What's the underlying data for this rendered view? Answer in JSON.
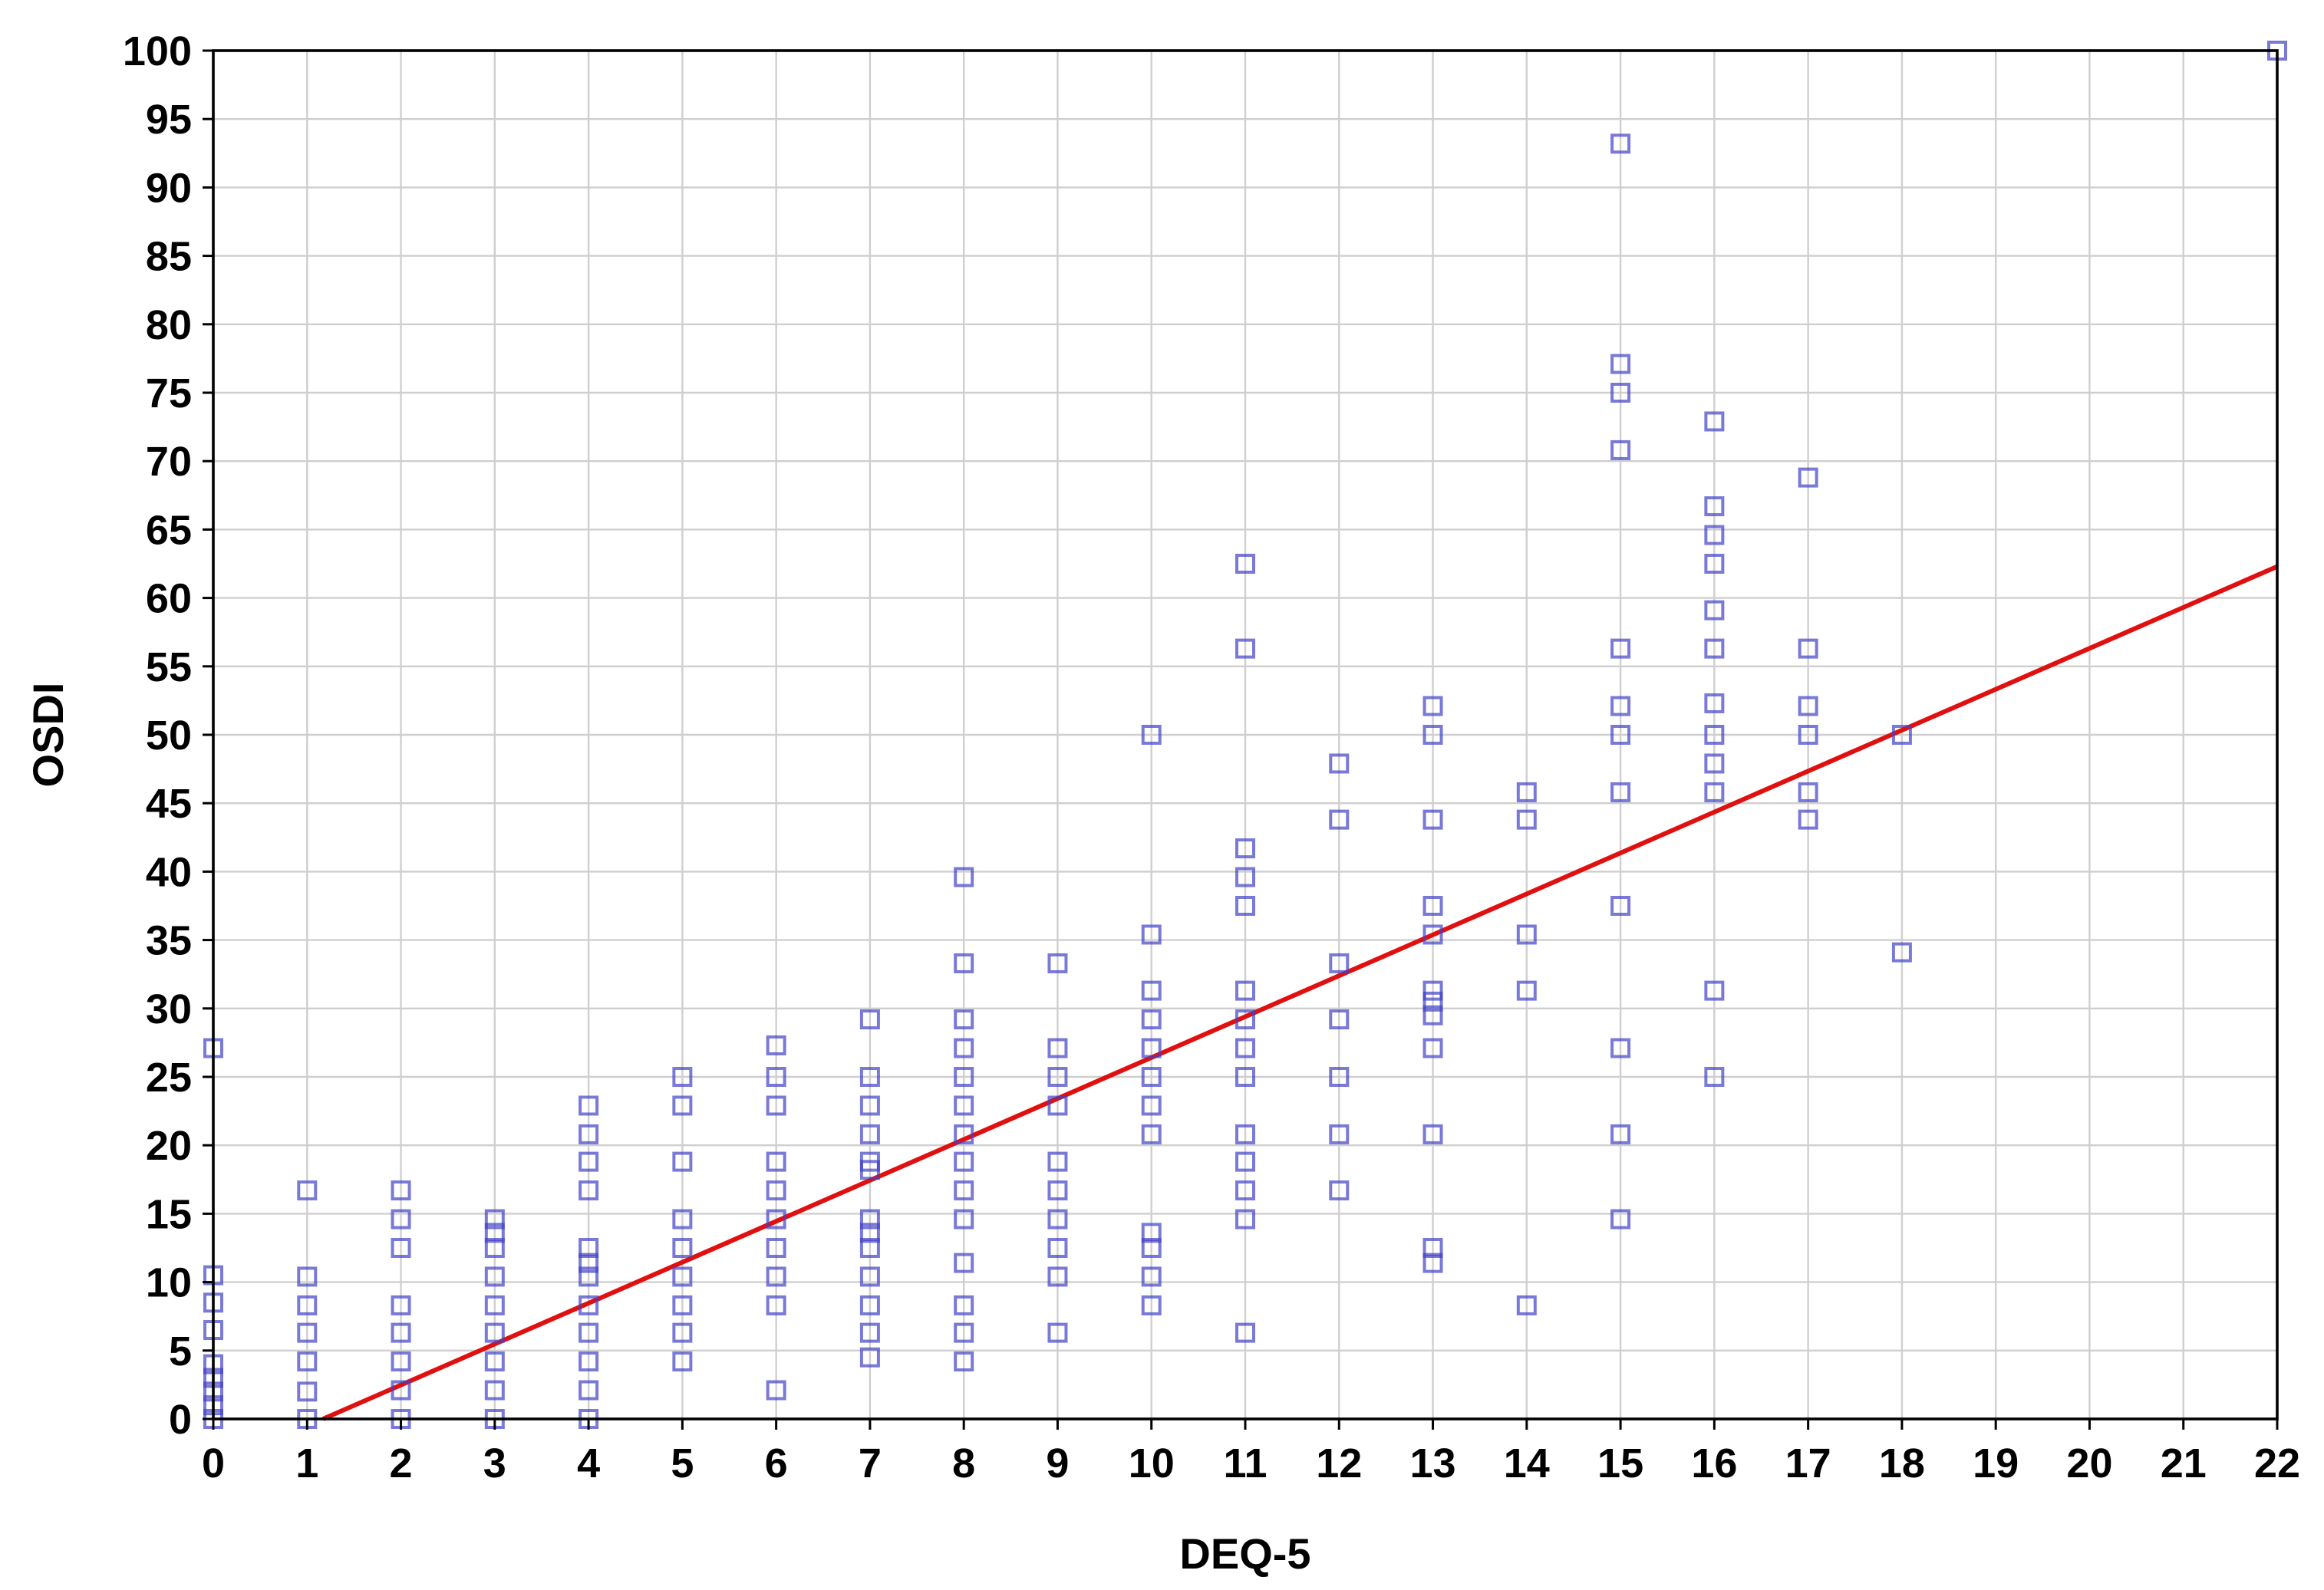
{
  "chart_data": {
    "type": "scatter",
    "title": "",
    "xlabel": "DEQ-5",
    "ylabel": "OSDI",
    "xlim": [
      0,
      22
    ],
    "ylim": [
      0,
      100
    ],
    "x_ticks": [
      "0",
      "1",
      "2",
      "3",
      "4",
      "5",
      "6",
      "7",
      "8",
      "9",
      "10",
      "11",
      "12",
      "13",
      "14",
      "15",
      "16",
      "17",
      "18",
      "19",
      "20",
      "21",
      "22"
    ],
    "y_ticks": [
      "0",
      "5",
      "10",
      "15",
      "20",
      "25",
      "30",
      "35",
      "40",
      "45",
      "50",
      "55",
      "60",
      "65",
      "70",
      "75",
      "80",
      "85",
      "90",
      "95",
      "100"
    ],
    "grid": true,
    "legend": "none",
    "colors": {
      "points": "#4040c8",
      "fit_line": "#e01010",
      "grid": "#cfcfcf"
    },
    "fit_line": {
      "x": [
        0,
        22
      ],
      "y": [
        -3.5,
        62.3
      ]
    },
    "points": [
      [
        0,
        0
      ],
      [
        0,
        1
      ],
      [
        0,
        2
      ],
      [
        0,
        3
      ],
      [
        0,
        4
      ],
      [
        0,
        6.5
      ],
      [
        0,
        8.5
      ],
      [
        0,
        10.5
      ],
      [
        0,
        27.1
      ],
      [
        1,
        0
      ],
      [
        1,
        2
      ],
      [
        1,
        4.2
      ],
      [
        1,
        6.3
      ],
      [
        1,
        8.3
      ],
      [
        1,
        10.4
      ],
      [
        1,
        16.7
      ],
      [
        2,
        0
      ],
      [
        2,
        2.1
      ],
      [
        2,
        4.2
      ],
      [
        2,
        6.3
      ],
      [
        2,
        8.3
      ],
      [
        2,
        12.5
      ],
      [
        2,
        14.6
      ],
      [
        2,
        16.7
      ],
      [
        3,
        0
      ],
      [
        3,
        2.1
      ],
      [
        3,
        4.2
      ],
      [
        3,
        6.3
      ],
      [
        3,
        8.3
      ],
      [
        3,
        10.4
      ],
      [
        3,
        12.5
      ],
      [
        3,
        13.6
      ],
      [
        3,
        14.6
      ],
      [
        4,
        0
      ],
      [
        4,
        2.1
      ],
      [
        4,
        4.2
      ],
      [
        4,
        6.3
      ],
      [
        4,
        8.3
      ],
      [
        4,
        10.4
      ],
      [
        4,
        11.4
      ],
      [
        4,
        12.5
      ],
      [
        4,
        16.7
      ],
      [
        4,
        18.8
      ],
      [
        4,
        20.8
      ],
      [
        4,
        22.9
      ],
      [
        5,
        4.2
      ],
      [
        5,
        6.3
      ],
      [
        5,
        8.3
      ],
      [
        5,
        10.4
      ],
      [
        5,
        12.5
      ],
      [
        5,
        14.6
      ],
      [
        5,
        18.8
      ],
      [
        5,
        22.9
      ],
      [
        5,
        25
      ],
      [
        6,
        2.1
      ],
      [
        6,
        8.3
      ],
      [
        6,
        10.4
      ],
      [
        6,
        12.5
      ],
      [
        6,
        14.6
      ],
      [
        6,
        16.7
      ],
      [
        6,
        18.8
      ],
      [
        6,
        22.9
      ],
      [
        6,
        25
      ],
      [
        6,
        27.3
      ],
      [
        7,
        4.5
      ],
      [
        7,
        6.3
      ],
      [
        7,
        8.3
      ],
      [
        7,
        10.4
      ],
      [
        7,
        12.5
      ],
      [
        7,
        13.6
      ],
      [
        7,
        14.6
      ],
      [
        7,
        18.2
      ],
      [
        7,
        18.8
      ],
      [
        7,
        20.8
      ],
      [
        7,
        22.9
      ],
      [
        7,
        25
      ],
      [
        7,
        29.2
      ],
      [
        8,
        4.2
      ],
      [
        8,
        6.3
      ],
      [
        8,
        8.3
      ],
      [
        8,
        11.4
      ],
      [
        8,
        14.6
      ],
      [
        8,
        16.7
      ],
      [
        8,
        18.8
      ],
      [
        8,
        20.8
      ],
      [
        8,
        22.9
      ],
      [
        8,
        25
      ],
      [
        8,
        27.1
      ],
      [
        8,
        29.2
      ],
      [
        8,
        33.3
      ],
      [
        8,
        39.6
      ],
      [
        9,
        6.3
      ],
      [
        9,
        10.4
      ],
      [
        9,
        12.5
      ],
      [
        9,
        14.6
      ],
      [
        9,
        16.7
      ],
      [
        9,
        18.8
      ],
      [
        9,
        22.9
      ],
      [
        9,
        25
      ],
      [
        9,
        27.1
      ],
      [
        9,
        33.3
      ],
      [
        10,
        8.3
      ],
      [
        10,
        10.4
      ],
      [
        10,
        12.5
      ],
      [
        10,
        13.6
      ],
      [
        10,
        20.8
      ],
      [
        10,
        22.9
      ],
      [
        10,
        25
      ],
      [
        10,
        27.1
      ],
      [
        10,
        29.2
      ],
      [
        10,
        31.3
      ],
      [
        10,
        35.4
      ],
      [
        10,
        50
      ],
      [
        11,
        6.3
      ],
      [
        11,
        14.6
      ],
      [
        11,
        16.7
      ],
      [
        11,
        18.8
      ],
      [
        11,
        20.8
      ],
      [
        11,
        25
      ],
      [
        11,
        27.1
      ],
      [
        11,
        29.2
      ],
      [
        11,
        31.3
      ],
      [
        11,
        37.5
      ],
      [
        11,
        39.6
      ],
      [
        11,
        41.7
      ],
      [
        11,
        56.3
      ],
      [
        11,
        62.5
      ],
      [
        12,
        16.7
      ],
      [
        12,
        20.8
      ],
      [
        12,
        25
      ],
      [
        12,
        29.2
      ],
      [
        12,
        33.3
      ],
      [
        12,
        43.8
      ],
      [
        12,
        47.9
      ],
      [
        13,
        11.4
      ],
      [
        13,
        12.5
      ],
      [
        13,
        20.8
      ],
      [
        13,
        27.1
      ],
      [
        13,
        29.5
      ],
      [
        13,
        30.5
      ],
      [
        13,
        31.3
      ],
      [
        13,
        35.4
      ],
      [
        13,
        37.5
      ],
      [
        13,
        43.8
      ],
      [
        13,
        50
      ],
      [
        13,
        52.1
      ],
      [
        14,
        8.3
      ],
      [
        14,
        31.3
      ],
      [
        14,
        35.4
      ],
      [
        14,
        43.8
      ],
      [
        14,
        45.8
      ],
      [
        15,
        14.6
      ],
      [
        15,
        20.8
      ],
      [
        15,
        27.1
      ],
      [
        15,
        37.5
      ],
      [
        15,
        45.8
      ],
      [
        15,
        50
      ],
      [
        15,
        52.1
      ],
      [
        15,
        56.3
      ],
      [
        15,
        70.8
      ],
      [
        15,
        75
      ],
      [
        15,
        77.1
      ],
      [
        15,
        93.2
      ],
      [
        16,
        25
      ],
      [
        16,
        31.3
      ],
      [
        16,
        45.8
      ],
      [
        16,
        47.9
      ],
      [
        16,
        50
      ],
      [
        16,
        52.3
      ],
      [
        16,
        56.3
      ],
      [
        16,
        59.1
      ],
      [
        16,
        62.5
      ],
      [
        16,
        64.6
      ],
      [
        16,
        66.7
      ],
      [
        16,
        72.9
      ],
      [
        17,
        43.8
      ],
      [
        17,
        45.8
      ],
      [
        17,
        50
      ],
      [
        17,
        52.1
      ],
      [
        17,
        56.3
      ],
      [
        17,
        68.8
      ],
      [
        18,
        34.1
      ],
      [
        18,
        50
      ],
      [
        22,
        100
      ]
    ]
  }
}
